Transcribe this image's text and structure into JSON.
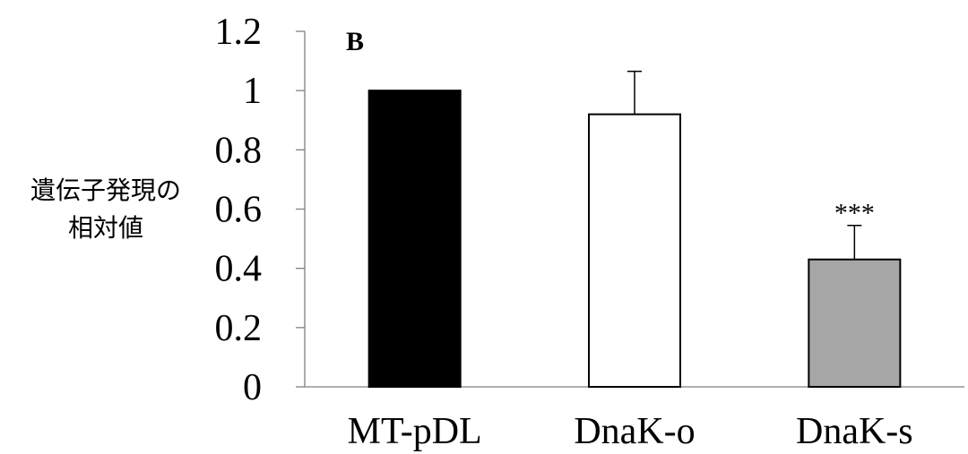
{
  "chart_data": {
    "type": "bar",
    "panel_label": "B",
    "ylabel_lines": [
      "遺伝子発現の",
      "相対値"
    ],
    "xlabel": "",
    "ylim": [
      0,
      1.2
    ],
    "yticks": [
      "0",
      "0.2",
      "0.4",
      "0.6",
      "0.8",
      "1",
      "1.2"
    ],
    "grid": false,
    "legend": "none",
    "categories": [
      "MT-pDL",
      "DnaK-o",
      "DnaK-s"
    ],
    "values": [
      1.0,
      0.92,
      0.43
    ],
    "errors": [
      0.0,
      0.145,
      0.115
    ],
    "annotations": [
      "",
      "",
      "***"
    ],
    "colors": [
      "#000000",
      "#ffffff",
      "#a6a6a6"
    ]
  }
}
